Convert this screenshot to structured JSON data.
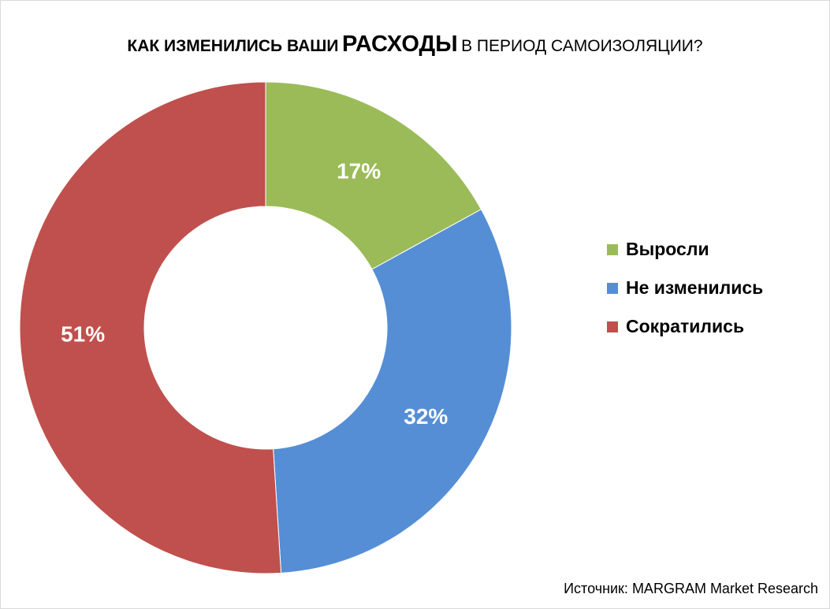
{
  "chart_data": {
    "type": "pie",
    "donut": true,
    "title_parts": [
      "КАК ИЗМЕНИЛИСЬ ВАШИ",
      "РАСХОДЫ",
      "В ПЕРИОД САМОИЗОЛЯЦИИ?"
    ],
    "categories": [
      "Выросли",
      "Не изменились",
      "Сократились"
    ],
    "values": [
      17,
      32,
      51
    ],
    "data_labels": [
      "17%",
      "32%",
      "51%"
    ],
    "colors": [
      "#9BBB59",
      "#558ED5",
      "#C0504D"
    ],
    "legend_placement": "right",
    "source": "Источник: MARGRAM Market Research"
  }
}
